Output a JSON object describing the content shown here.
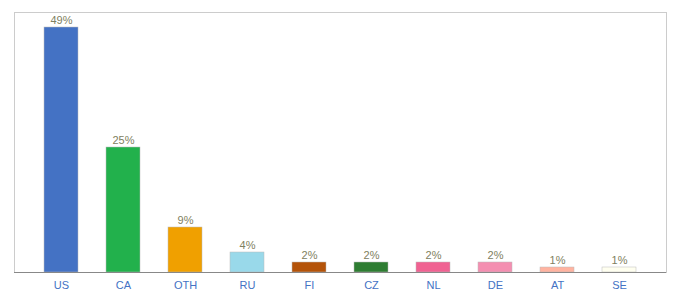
{
  "chart_data": {
    "type": "bar",
    "categories": [
      "US",
      "CA",
      "OTH",
      "RU",
      "FI",
      "CZ",
      "NL",
      "DE",
      "AT",
      "SE"
    ],
    "values": [
      49,
      25,
      9,
      4,
      2,
      2,
      2,
      2,
      1,
      1
    ],
    "value_labels": [
      "49%",
      "25%",
      "9%",
      "4%",
      "2%",
      "2%",
      "2%",
      "2%",
      "1%",
      "1%"
    ],
    "colors": [
      "#4472c4",
      "#22b14c",
      "#f0a000",
      "#99d9ea",
      "#b45309",
      "#2e7d32",
      "#f06292",
      "#f48fb1",
      "#ffb3a0",
      "#fffff0"
    ],
    "ylim": [
      0,
      52
    ],
    "data_labels": true,
    "tick_labels": "x",
    "grid": false
  }
}
